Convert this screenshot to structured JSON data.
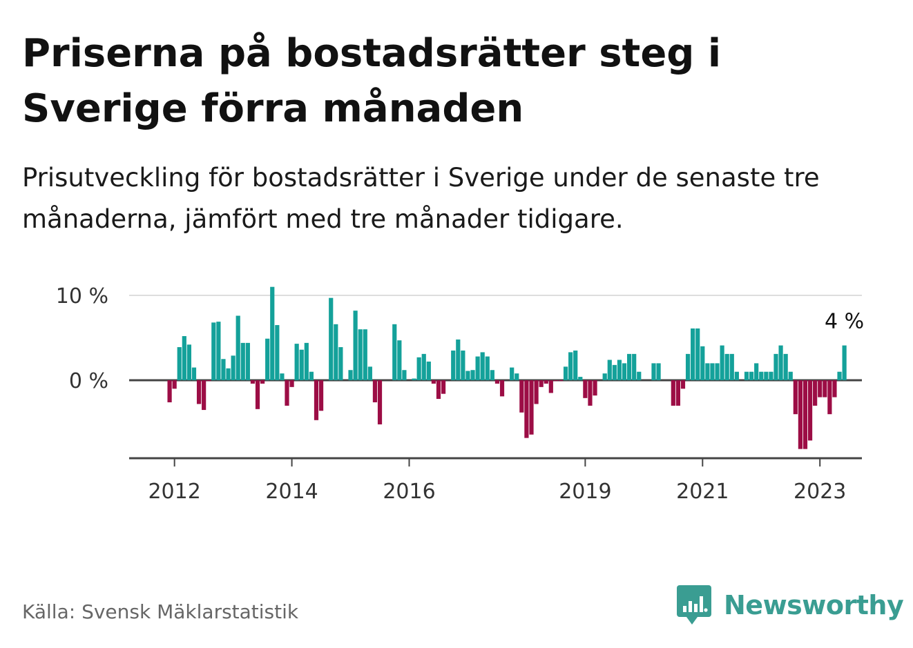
{
  "title": "Priserna på bostadsrätter steg i Sverige förra månaden",
  "subtitle": "Prisutveckling för bostadsrätter i Sverige under de senaste tre månaderna, jämfört med tre månader tidigare.",
  "source": "Källa: Svensk Mäklarstatistik",
  "brand": "Newsworthy",
  "colors": {
    "positive": "#14a19a",
    "negative": "#9c0d45",
    "brand": "#3a9d92",
    "axis": "#444444",
    "grid": "#dddddd"
  },
  "chart_data": {
    "type": "bar",
    "y_unit": "%",
    "y_ticks": [
      {
        "value": 0,
        "label": "0 %"
      },
      {
        "value": 10,
        "label": "10 %"
      }
    ],
    "ylim": [
      -9.3,
      10.5
    ],
    "grid": true,
    "start": "2011-11",
    "x_ticks": [
      {
        "label": "2012",
        "month_index": 2
      },
      {
        "label": "2014",
        "month_index": 26
      },
      {
        "label": "2016",
        "month_index": 50
      },
      {
        "label": "2019",
        "month_index": 86
      },
      {
        "label": "2021",
        "month_index": 110
      },
      {
        "label": "2023",
        "month_index": 134
      }
    ],
    "last_value_label": "4 %",
    "values": [
      0.0,
      -2.6,
      -1.0,
      3.9,
      5.2,
      4.2,
      1.5,
      -2.8,
      -3.5,
      -0.1,
      6.8,
      6.9,
      2.5,
      1.4,
      2.9,
      7.6,
      4.4,
      4.4,
      -0.4,
      -3.4,
      -0.4,
      4.9,
      11.0,
      6.5,
      0.8,
      -3.0,
      -0.8,
      4.3,
      3.6,
      4.4,
      1.0,
      -4.7,
      -3.6,
      0.0,
      9.7,
      6.6,
      3.9,
      0.0,
      1.2,
      8.2,
      6.0,
      6.0,
      1.6,
      -2.6,
      -5.2,
      0.0,
      0.0,
      6.6,
      4.7,
      1.2,
      0.0,
      0.2,
      2.7,
      3.1,
      2.2,
      -0.4,
      -2.2,
      -1.6,
      0.0,
      3.5,
      4.8,
      3.5,
      1.1,
      1.2,
      2.8,
      3.3,
      2.8,
      1.2,
      -0.4,
      -1.9,
      0.0,
      1.5,
      0.8,
      -3.8,
      -6.8,
      -6.4,
      -2.8,
      -0.8,
      -0.4,
      -1.5,
      -0.1,
      -0.1,
      1.6,
      3.3,
      3.5,
      0.4,
      -2.1,
      -3.0,
      -1.8,
      0.0,
      0.8,
      2.4,
      1.8,
      2.4,
      2.0,
      3.1,
      3.1,
      1.0,
      0.0,
      0.0,
      2.0,
      2.0,
      0.0,
      0.0,
      -3.0,
      -3.0,
      -1.0,
      3.1,
      6.1,
      6.1,
      4.0,
      2.0,
      2.0,
      2.0,
      4.1,
      3.1,
      3.1,
      1.0,
      0.0,
      1.0,
      1.0,
      2.0,
      1.0,
      1.0,
      1.0,
      3.1,
      4.1,
      3.1,
      1.0,
      -4.0,
      -8.1,
      -8.1,
      -7.1,
      -3.0,
      -2.0,
      -2.0,
      -4.0,
      -2.0,
      1.0,
      4.1
    ]
  }
}
